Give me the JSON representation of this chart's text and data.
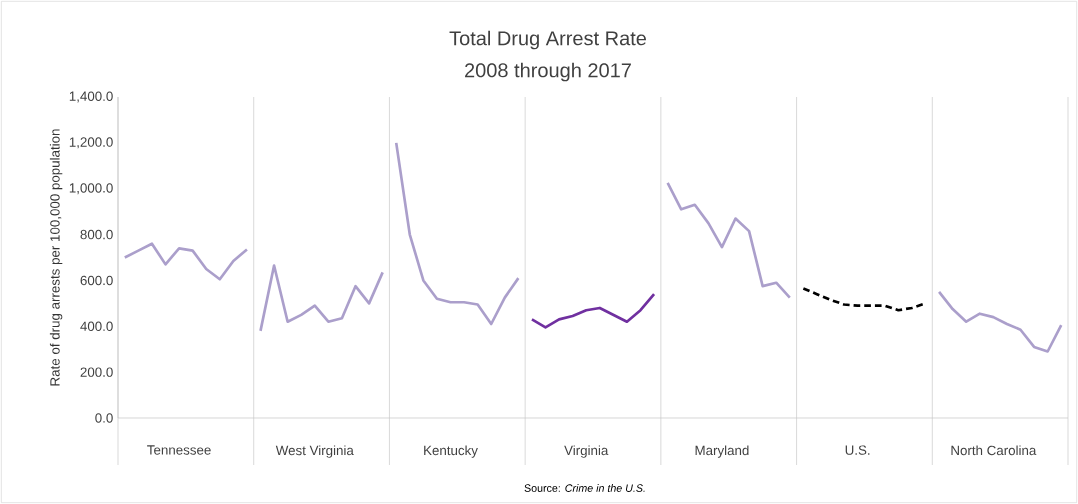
{
  "chart_data": {
    "type": "line",
    "title": "Total Drug Arrest Rate",
    "subtitle": "2008 through 2017",
    "ylabel": "Rate of drug arrests per 100,000 population",
    "annotations": [
      "Source:  *Crime in the U.S.*"
    ],
    "categories": [
      null,
      null,
      null,
      null,
      "Tennessee",
      null,
      null,
      null,
      null,
      null,
      null,
      null,
      null,
      null,
      "West Virginia",
      null,
      null,
      null,
      null,
      null,
      null,
      null,
      null,
      null,
      "Kentucky",
      null,
      null,
      null,
      null,
      null,
      null,
      null,
      null,
      null,
      "Virginia",
      null,
      null,
      null,
      null,
      null,
      null,
      null,
      null,
      null,
      "Maryland",
      null,
      null,
      null,
      null,
      null,
      null,
      null,
      null,
      null,
      "U.S.",
      null,
      null,
      null,
      null,
      null,
      null,
      null,
      null,
      null,
      "North Carolina",
      null,
      null,
      null,
      null,
      null
    ],
    "ylim": [
      0,
      1400
    ],
    "yticks": [
      {
        "value": 0,
        "label": "0.0"
      },
      {
        "value": 200,
        "label": "200.0"
      },
      {
        "value": 400,
        "label": "400.0"
      },
      {
        "value": 600,
        "label": "600.0"
      },
      {
        "value": 800,
        "label": "800.0"
      },
      {
        "value": 1000,
        "label": "1,000.0"
      },
      {
        "value": 1200,
        "label": "1,200.0"
      },
      {
        "value": 1400,
        "label": "1,400.0"
      }
    ],
    "series": [
      {
        "color": "#ab9fcb",
        "values": [
          700,
          730,
          760,
          670,
          740,
          730,
          650,
          605,
          685,
          735,
          null,
          null,
          null,
          null,
          null,
          null,
          null,
          null,
          null,
          null,
          null,
          null,
          null,
          null,
          null,
          null,
          null,
          null,
          null,
          null,
          null,
          null,
          null,
          null,
          null,
          null,
          null,
          null,
          null,
          null,
          null,
          null,
          null,
          null,
          null,
          null,
          null,
          null,
          null,
          null,
          null,
          null,
          null,
          null,
          null,
          null,
          null,
          null,
          null,
          null,
          null,
          null,
          null,
          null,
          null,
          null,
          null,
          null,
          null,
          null
        ]
      },
      {
        "color": "#ab9fcb",
        "values": [
          null,
          null,
          null,
          null,
          null,
          null,
          null,
          null,
          null,
          null,
          380,
          665,
          420,
          450,
          490,
          420,
          435,
          575,
          500,
          635,
          null,
          null,
          null,
          null,
          null,
          null,
          null,
          null,
          null,
          null,
          null,
          null,
          null,
          null,
          null,
          null,
          null,
          null,
          null,
          null,
          null,
          null,
          null,
          null,
          null,
          null,
          null,
          null,
          null,
          null,
          null,
          null,
          null,
          null,
          null,
          null,
          null,
          null,
          null,
          null,
          null,
          null,
          null,
          null,
          null,
          null,
          null,
          null,
          null,
          null
        ]
      },
      {
        "color": "#ab9fcb",
        "values": [
          null,
          null,
          null,
          null,
          null,
          null,
          null,
          null,
          null,
          null,
          null,
          null,
          null,
          null,
          null,
          null,
          null,
          null,
          null,
          null,
          1200,
          800,
          600,
          520,
          505,
          505,
          495,
          410,
          525,
          610,
          null,
          null,
          null,
          null,
          null,
          null,
          null,
          null,
          null,
          null,
          null,
          null,
          null,
          null,
          null,
          null,
          null,
          null,
          null,
          null,
          null,
          null,
          null,
          null,
          null,
          null,
          null,
          null,
          null,
          null,
          null,
          null,
          null,
          null,
          null,
          null,
          null,
          null,
          null,
          null
        ]
      },
      {
        "color": "#7030a0",
        "values": [
          null,
          null,
          null,
          null,
          null,
          null,
          null,
          null,
          null,
          null,
          null,
          null,
          null,
          null,
          null,
          null,
          null,
          null,
          null,
          null,
          null,
          null,
          null,
          null,
          null,
          null,
          null,
          null,
          null,
          null,
          430,
          395,
          430,
          445,
          470,
          480,
          450,
          420,
          470,
          540,
          null,
          null,
          null,
          null,
          null,
          null,
          null,
          null,
          null,
          null,
          null,
          null,
          null,
          null,
          null,
          null,
          null,
          null,
          null,
          null,
          null,
          null,
          null,
          null,
          null,
          null,
          null,
          null,
          null,
          null
        ]
      },
      {
        "color": "#ab9fcb",
        "values": [
          null,
          null,
          null,
          null,
          null,
          null,
          null,
          null,
          null,
          null,
          null,
          null,
          null,
          null,
          null,
          null,
          null,
          null,
          null,
          null,
          null,
          null,
          null,
          null,
          null,
          null,
          null,
          null,
          null,
          null,
          null,
          null,
          null,
          null,
          null,
          null,
          null,
          null,
          null,
          null,
          1025,
          910,
          930,
          850,
          745,
          870,
          815,
          575,
          590,
          525,
          null,
          null,
          null,
          null,
          null,
          null,
          null,
          null,
          null,
          null,
          null,
          null,
          null,
          null,
          null,
          null,
          null,
          null,
          null,
          null
        ]
      },
      {
        "color": "#000000",
        "line_style": "dashed",
        "values": [
          null,
          null,
          null,
          null,
          null,
          null,
          null,
          null,
          null,
          null,
          null,
          null,
          null,
          null,
          null,
          null,
          null,
          null,
          null,
          null,
          null,
          null,
          null,
          null,
          null,
          null,
          null,
          null,
          null,
          null,
          null,
          null,
          null,
          null,
          null,
          null,
          null,
          null,
          null,
          null,
          null,
          null,
          null,
          null,
          null,
          null,
          null,
          null,
          null,
          null,
          565,
          540,
          515,
          495,
          490,
          490,
          490,
          470,
          480,
          500,
          null,
          null,
          null,
          null,
          null,
          null,
          null,
          null,
          null,
          null
        ]
      },
      {
        "color": "#ab9fcb",
        "values": [
          null,
          null,
          null,
          null,
          null,
          null,
          null,
          null,
          null,
          null,
          null,
          null,
          null,
          null,
          null,
          null,
          null,
          null,
          null,
          null,
          null,
          null,
          null,
          null,
          null,
          null,
          null,
          null,
          null,
          null,
          null,
          null,
          null,
          null,
          null,
          null,
          null,
          null,
          null,
          null,
          null,
          null,
          null,
          null,
          null,
          null,
          null,
          null,
          null,
          null,
          null,
          null,
          null,
          null,
          null,
          null,
          null,
          null,
          null,
          null,
          550,
          475,
          420,
          455,
          440,
          410,
          385,
          310,
          290,
          405
        ]
      }
    ]
  }
}
